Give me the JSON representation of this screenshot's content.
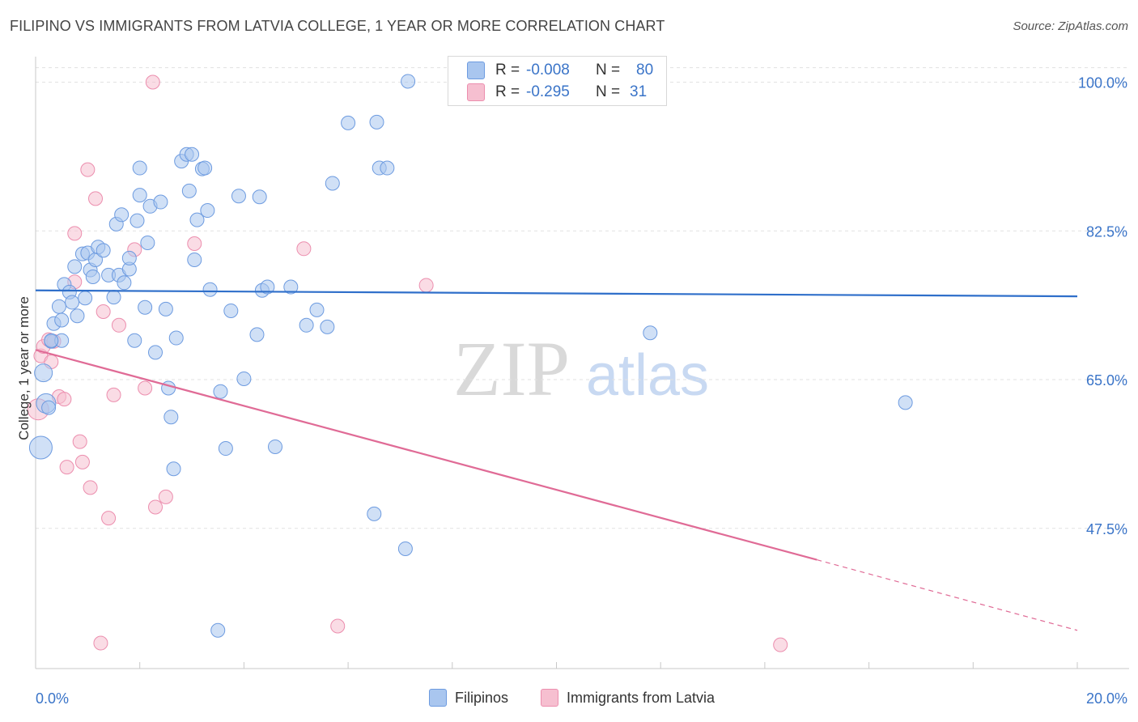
{
  "title": "FILIPINO VS IMMIGRANTS FROM LATVIA COLLEGE, 1 YEAR OR MORE CORRELATION CHART",
  "source": "Source: ZipAtlas.com",
  "watermark": {
    "zip": "ZIP",
    "atlas": "atlas"
  },
  "colors": {
    "blue_fill": "#a9c6ef",
    "blue_stroke": "#6d9be0",
    "blue_line": "#2f6fca",
    "pink_fill": "#f6bfd0",
    "pink_stroke": "#ec8eae",
    "pink_line": "#e06b96",
    "grid": "#e1e1e1",
    "axis_text": "#3a74c8"
  },
  "legend": {
    "series": [
      {
        "r_label": "R =",
        "r_value": "-0.008",
        "n_label": "N =",
        "n_value": "80"
      },
      {
        "r_label": "R =",
        "r_value": "-0.295",
        "n_label": "N =",
        "n_value": "31"
      }
    ]
  },
  "chart_data": {
    "type": "scatter",
    "title": "FILIPINO VS IMMIGRANTS FROM LATVIA COLLEGE, 1 YEAR OR MORE CORRELATION CHART",
    "xlabel": "",
    "ylabel": "College, 1 year or more",
    "xlim": [
      0,
      20
    ],
    "ylim": [
      31,
      103
    ],
    "x_tick_labels": [
      "0.0%",
      "20.0%"
    ],
    "y_ticks": [
      47.5,
      65.0,
      82.5,
      100.0
    ],
    "y_tick_labels": [
      "47.5%",
      "65.0%",
      "82.5%",
      "100.0%"
    ],
    "grid": true,
    "legend_position": "top-center",
    "series": [
      {
        "name": "Filipinos",
        "trend": {
          "x": [
            0,
            20
          ],
          "y": [
            75.5,
            74.8
          ],
          "style": "solid"
        },
        "points": [
          [
            0.1,
            57.0
          ],
          [
            0.15,
            65.8
          ],
          [
            0.2,
            62.2
          ],
          [
            0.3,
            69.5
          ],
          [
            0.35,
            71.6
          ],
          [
            0.45,
            73.6
          ],
          [
            0.5,
            72.0
          ],
          [
            0.5,
            69.6
          ],
          [
            0.55,
            76.2
          ],
          [
            0.65,
            75.3
          ],
          [
            0.7,
            74.1
          ],
          [
            0.75,
            78.3
          ],
          [
            0.8,
            72.5
          ],
          [
            0.9,
            79.8
          ],
          [
            0.95,
            74.6
          ],
          [
            1.0,
            79.9
          ],
          [
            1.05,
            77.9
          ],
          [
            1.1,
            77.1
          ],
          [
            1.15,
            79.1
          ],
          [
            1.2,
            80.6
          ],
          [
            1.3,
            80.2
          ],
          [
            1.4,
            77.3
          ],
          [
            1.5,
            74.7
          ],
          [
            1.55,
            83.3
          ],
          [
            1.6,
            77.3
          ],
          [
            1.65,
            84.4
          ],
          [
            1.7,
            76.4
          ],
          [
            1.8,
            78.0
          ],
          [
            1.8,
            79.3
          ],
          [
            1.9,
            69.6
          ],
          [
            1.95,
            83.7
          ],
          [
            2.0,
            86.7
          ],
          [
            2.0,
            89.9
          ],
          [
            2.1,
            73.5
          ],
          [
            2.15,
            81.1
          ],
          [
            2.2,
            85.4
          ],
          [
            2.3,
            68.2
          ],
          [
            2.4,
            85.9
          ],
          [
            2.5,
            73.3
          ],
          [
            2.55,
            64.0
          ],
          [
            2.6,
            60.6
          ],
          [
            2.65,
            54.5
          ],
          [
            2.7,
            69.9
          ],
          [
            2.8,
            90.7
          ],
          [
            2.9,
            91.5
          ],
          [
            2.95,
            87.2
          ],
          [
            3.0,
            91.5
          ],
          [
            3.05,
            79.1
          ],
          [
            3.1,
            83.8
          ],
          [
            3.2,
            89.8
          ],
          [
            3.25,
            89.9
          ],
          [
            3.3,
            84.9
          ],
          [
            3.35,
            75.6
          ],
          [
            3.5,
            35.5
          ],
          [
            3.55,
            63.6
          ],
          [
            3.65,
            56.9
          ],
          [
            3.75,
            73.1
          ],
          [
            3.9,
            86.6
          ],
          [
            4.0,
            65.1
          ],
          [
            4.25,
            70.3
          ],
          [
            4.3,
            86.5
          ],
          [
            4.35,
            75.5
          ],
          [
            4.45,
            75.9
          ],
          [
            4.6,
            57.1
          ],
          [
            4.9,
            75.9
          ],
          [
            5.2,
            71.4
          ],
          [
            5.4,
            73.2
          ],
          [
            5.6,
            71.2
          ],
          [
            5.7,
            88.1
          ],
          [
            6.0,
            95.2
          ],
          [
            6.5,
            49.2
          ],
          [
            6.55,
            95.3
          ],
          [
            6.6,
            89.9
          ],
          [
            6.75,
            89.9
          ],
          [
            7.1,
            45.1
          ],
          [
            7.15,
            100.1
          ],
          [
            11.8,
            70.5
          ],
          [
            16.7,
            62.3
          ],
          [
            0.25,
            61.7
          ],
          [
            0.3,
            69.6
          ]
        ]
      },
      {
        "name": "Immigrants from Latvia",
        "trend": {
          "x": [
            0,
            15
          ],
          "y": [
            68.5,
            43.8
          ],
          "style": "solid",
          "dashed_to": [
            20,
            35.5
          ]
        },
        "points": [
          [
            0.05,
            61.5
          ],
          [
            0.1,
            67.8
          ],
          [
            0.15,
            68.9
          ],
          [
            0.25,
            69.7
          ],
          [
            0.3,
            67.1
          ],
          [
            0.35,
            69.5
          ],
          [
            0.45,
            63.0
          ],
          [
            0.55,
            62.7
          ],
          [
            0.6,
            54.7
          ],
          [
            0.75,
            76.5
          ],
          [
            0.75,
            82.2
          ],
          [
            0.85,
            57.7
          ],
          [
            0.9,
            55.3
          ],
          [
            1.0,
            89.7
          ],
          [
            1.05,
            52.3
          ],
          [
            1.15,
            86.3
          ],
          [
            1.25,
            34.0
          ],
          [
            1.3,
            73.0
          ],
          [
            1.4,
            48.7
          ],
          [
            1.5,
            63.2
          ],
          [
            1.6,
            71.4
          ],
          [
            1.9,
            80.3
          ],
          [
            2.1,
            64.0
          ],
          [
            2.25,
            100.0
          ],
          [
            2.3,
            50.0
          ],
          [
            2.5,
            51.2
          ],
          [
            3.05,
            81.0
          ],
          [
            5.15,
            80.4
          ],
          [
            5.8,
            36.0
          ],
          [
            7.5,
            76.1
          ],
          [
            14.3,
            33.8
          ]
        ]
      }
    ]
  },
  "bottom_legend": {
    "items": [
      "Filipinos",
      "Immigrants from Latvia"
    ]
  }
}
